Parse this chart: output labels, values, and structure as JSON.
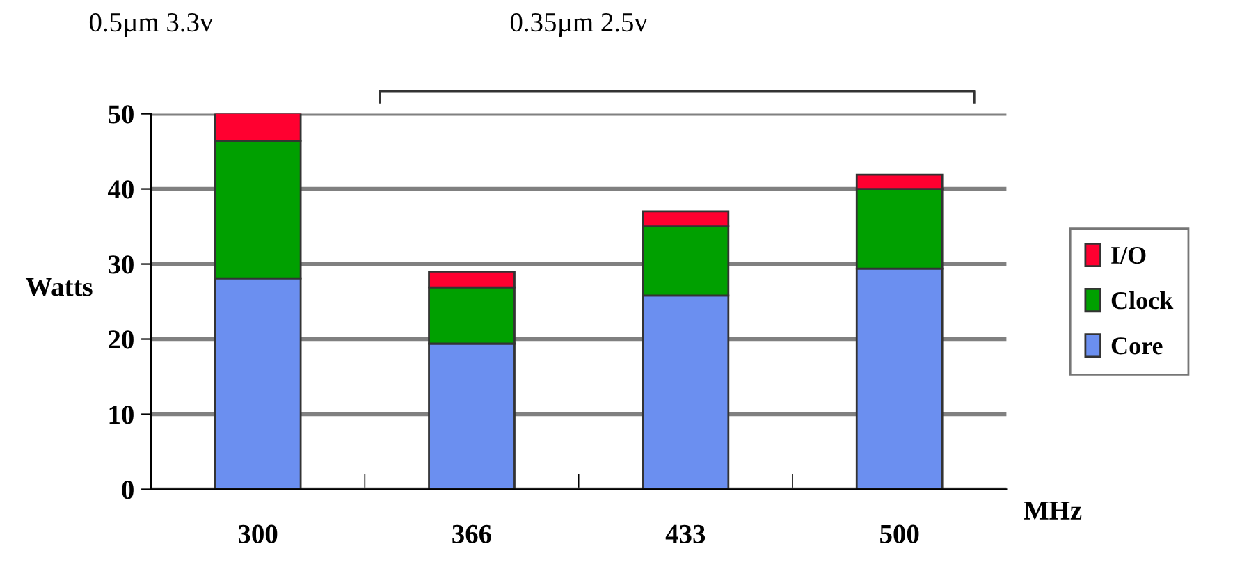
{
  "chart_data": {
    "type": "bar",
    "stacked": true,
    "categories": [
      "300",
      "366",
      "433",
      "500"
    ],
    "series": [
      {
        "name": "Core",
        "color": "#6b8ff0",
        "values": [
          28.1,
          19.4,
          25.8,
          29.4
        ]
      },
      {
        "name": "Clock",
        "color": "#00a000",
        "values": [
          18.3,
          7.5,
          9.2,
          10.6
        ]
      },
      {
        "name": "I/O",
        "color": "#ff0030",
        "values": [
          3.7,
          2.1,
          2.0,
          1.9
        ]
      }
    ],
    "ylim": [
      0,
      50
    ],
    "yticks": [
      0,
      10,
      20,
      30,
      40,
      50
    ],
    "ylabel": "Watts",
    "xlabel": "MHz",
    "grid": "y",
    "legend": "right",
    "annotations": [
      "0.5µm 3.3v",
      "0.35µm 2.5v"
    ]
  }
}
